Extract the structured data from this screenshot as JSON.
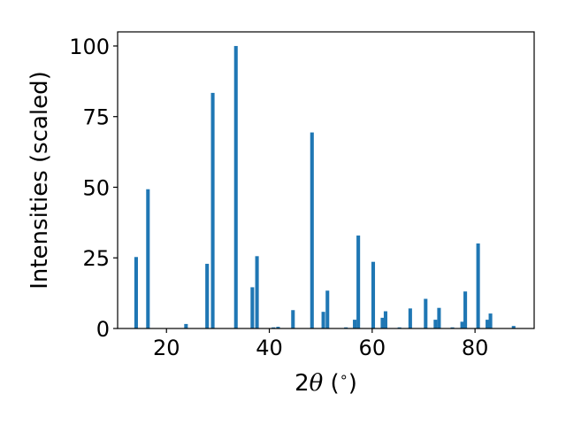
{
  "chart_data": {
    "type": "bar",
    "title": "",
    "xlabel_parts": [
      "2",
      "θ",
      " (",
      "∘",
      ")"
    ],
    "ylabel": "Intensities (scaled)",
    "xlim": [
      10.5,
      91.5
    ],
    "ylim": [
      0,
      105
    ],
    "xticks": [
      20,
      40,
      60,
      80
    ],
    "xtick_labels": [
      "20",
      "40",
      "60",
      "80"
    ],
    "yticks": [
      0,
      25,
      50,
      75,
      100
    ],
    "ytick_labels": [
      "0",
      "25",
      "50",
      "75",
      "100"
    ],
    "bar_width_deg": 0.7,
    "bar_color": "#1f77b4",
    "grid": false,
    "points": [
      {
        "x": 14.1,
        "y": 25.3
      },
      {
        "x": 16.4,
        "y": 49.3
      },
      {
        "x": 23.8,
        "y": 1.6
      },
      {
        "x": 27.9,
        "y": 22.9
      },
      {
        "x": 29.0,
        "y": 83.4
      },
      {
        "x": 33.5,
        "y": 100.0
      },
      {
        "x": 36.7,
        "y": 14.6
      },
      {
        "x": 37.6,
        "y": 25.6
      },
      {
        "x": 40.8,
        "y": 0.4
      },
      {
        "x": 41.7,
        "y": 0.6
      },
      {
        "x": 44.6,
        "y": 6.5
      },
      {
        "x": 48.3,
        "y": 69.4
      },
      {
        "x": 50.5,
        "y": 5.9
      },
      {
        "x": 51.3,
        "y": 13.4
      },
      {
        "x": 54.9,
        "y": 0.4
      },
      {
        "x": 56.6,
        "y": 3.1
      },
      {
        "x": 57.3,
        "y": 32.9
      },
      {
        "x": 60.2,
        "y": 23.6
      },
      {
        "x": 62.0,
        "y": 3.8
      },
      {
        "x": 62.6,
        "y": 6.1
      },
      {
        "x": 65.3,
        "y": 0.4
      },
      {
        "x": 67.4,
        "y": 7.1
      },
      {
        "x": 70.4,
        "y": 10.5
      },
      {
        "x": 72.3,
        "y": 3.1
      },
      {
        "x": 73.0,
        "y": 7.3
      },
      {
        "x": 75.6,
        "y": 0.4
      },
      {
        "x": 77.5,
        "y": 2.4
      },
      {
        "x": 78.1,
        "y": 13.1
      },
      {
        "x": 80.6,
        "y": 30.1
      },
      {
        "x": 82.4,
        "y": 3.1
      },
      {
        "x": 83.0,
        "y": 5.3
      },
      {
        "x": 87.5,
        "y": 0.9
      }
    ]
  }
}
